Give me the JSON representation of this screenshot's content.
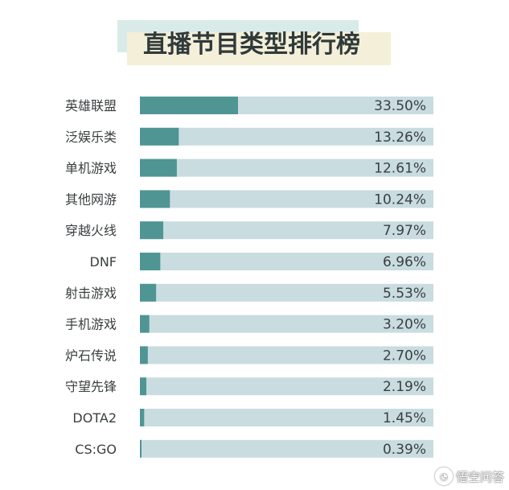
{
  "chart_data": {
    "type": "bar",
    "orientation": "horizontal",
    "title": "直播节目类型排行榜",
    "categories": [
      "英雄联盟",
      "泛娱乐类",
      "单机游戏",
      "其他网游",
      "穿越火线",
      "DNF",
      "射击游戏",
      "手机游戏",
      "炉石传说",
      "守望先锋",
      "DOTA2",
      "CS:GO"
    ],
    "values": [
      33.5,
      13.26,
      12.61,
      10.24,
      7.97,
      6.96,
      5.53,
      3.2,
      2.7,
      2.19,
      1.45,
      0.39
    ],
    "value_labels": [
      "33.50%",
      "13.26%",
      "12.61%",
      "10.24%",
      "7.97%",
      "6.96%",
      "5.53%",
      "3.20%",
      "2.70%",
      "2.19%",
      "1.45%",
      "0.39%"
    ],
    "xlim": [
      0,
      100
    ],
    "grid": false,
    "colors": {
      "bar": "#4f9594",
      "track": "#c9dce0"
    }
  },
  "watermark": {
    "text": "悟空问答",
    "icon": "chat-bubble-icon"
  }
}
